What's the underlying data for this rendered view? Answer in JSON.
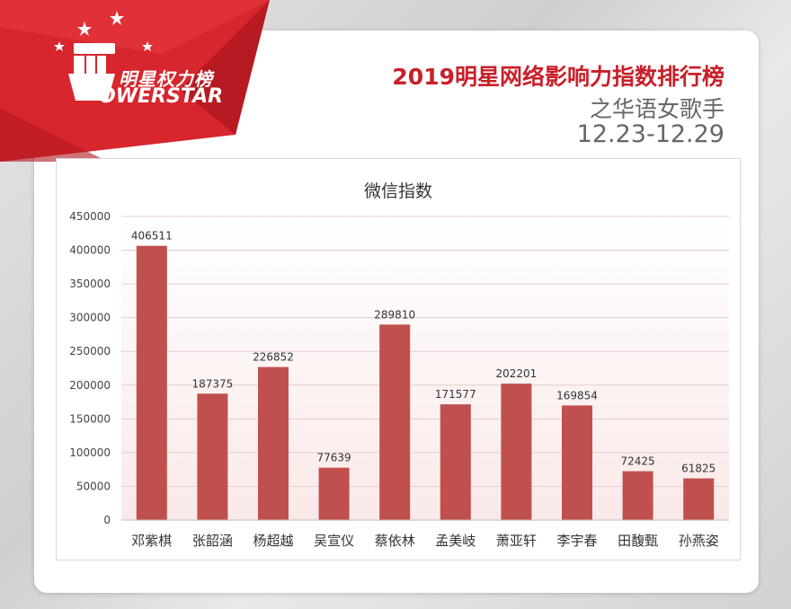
{
  "header": {
    "logo_cn": "明星权力榜",
    "logo_en": "OWERSTAR",
    "title": "2019明星网络影响力指数排行榜",
    "subtitle": "之华语女歌手",
    "date_range": "12.23-12.29"
  },
  "colors": {
    "accent_red": "#c8202a",
    "bar": "#c0504d"
  },
  "chart_data": {
    "type": "bar",
    "title": "微信指数",
    "xlabel": "",
    "ylabel": "",
    "categories": [
      "邓紫棋",
      "张韶涵",
      "杨超越",
      "吴宣仪",
      "蔡依林",
      "孟美岐",
      "萧亚轩",
      "李宇春",
      "田馥甄",
      "孙燕姿"
    ],
    "values": [
      406511,
      187375,
      226852,
      77639,
      289810,
      171577,
      202201,
      169854,
      72425,
      61825
    ],
    "ylim": [
      0,
      450000
    ],
    "yticks": [
      0,
      50000,
      100000,
      150000,
      200000,
      250000,
      300000,
      350000,
      400000,
      450000
    ],
    "grid": true,
    "legend": "none"
  }
}
